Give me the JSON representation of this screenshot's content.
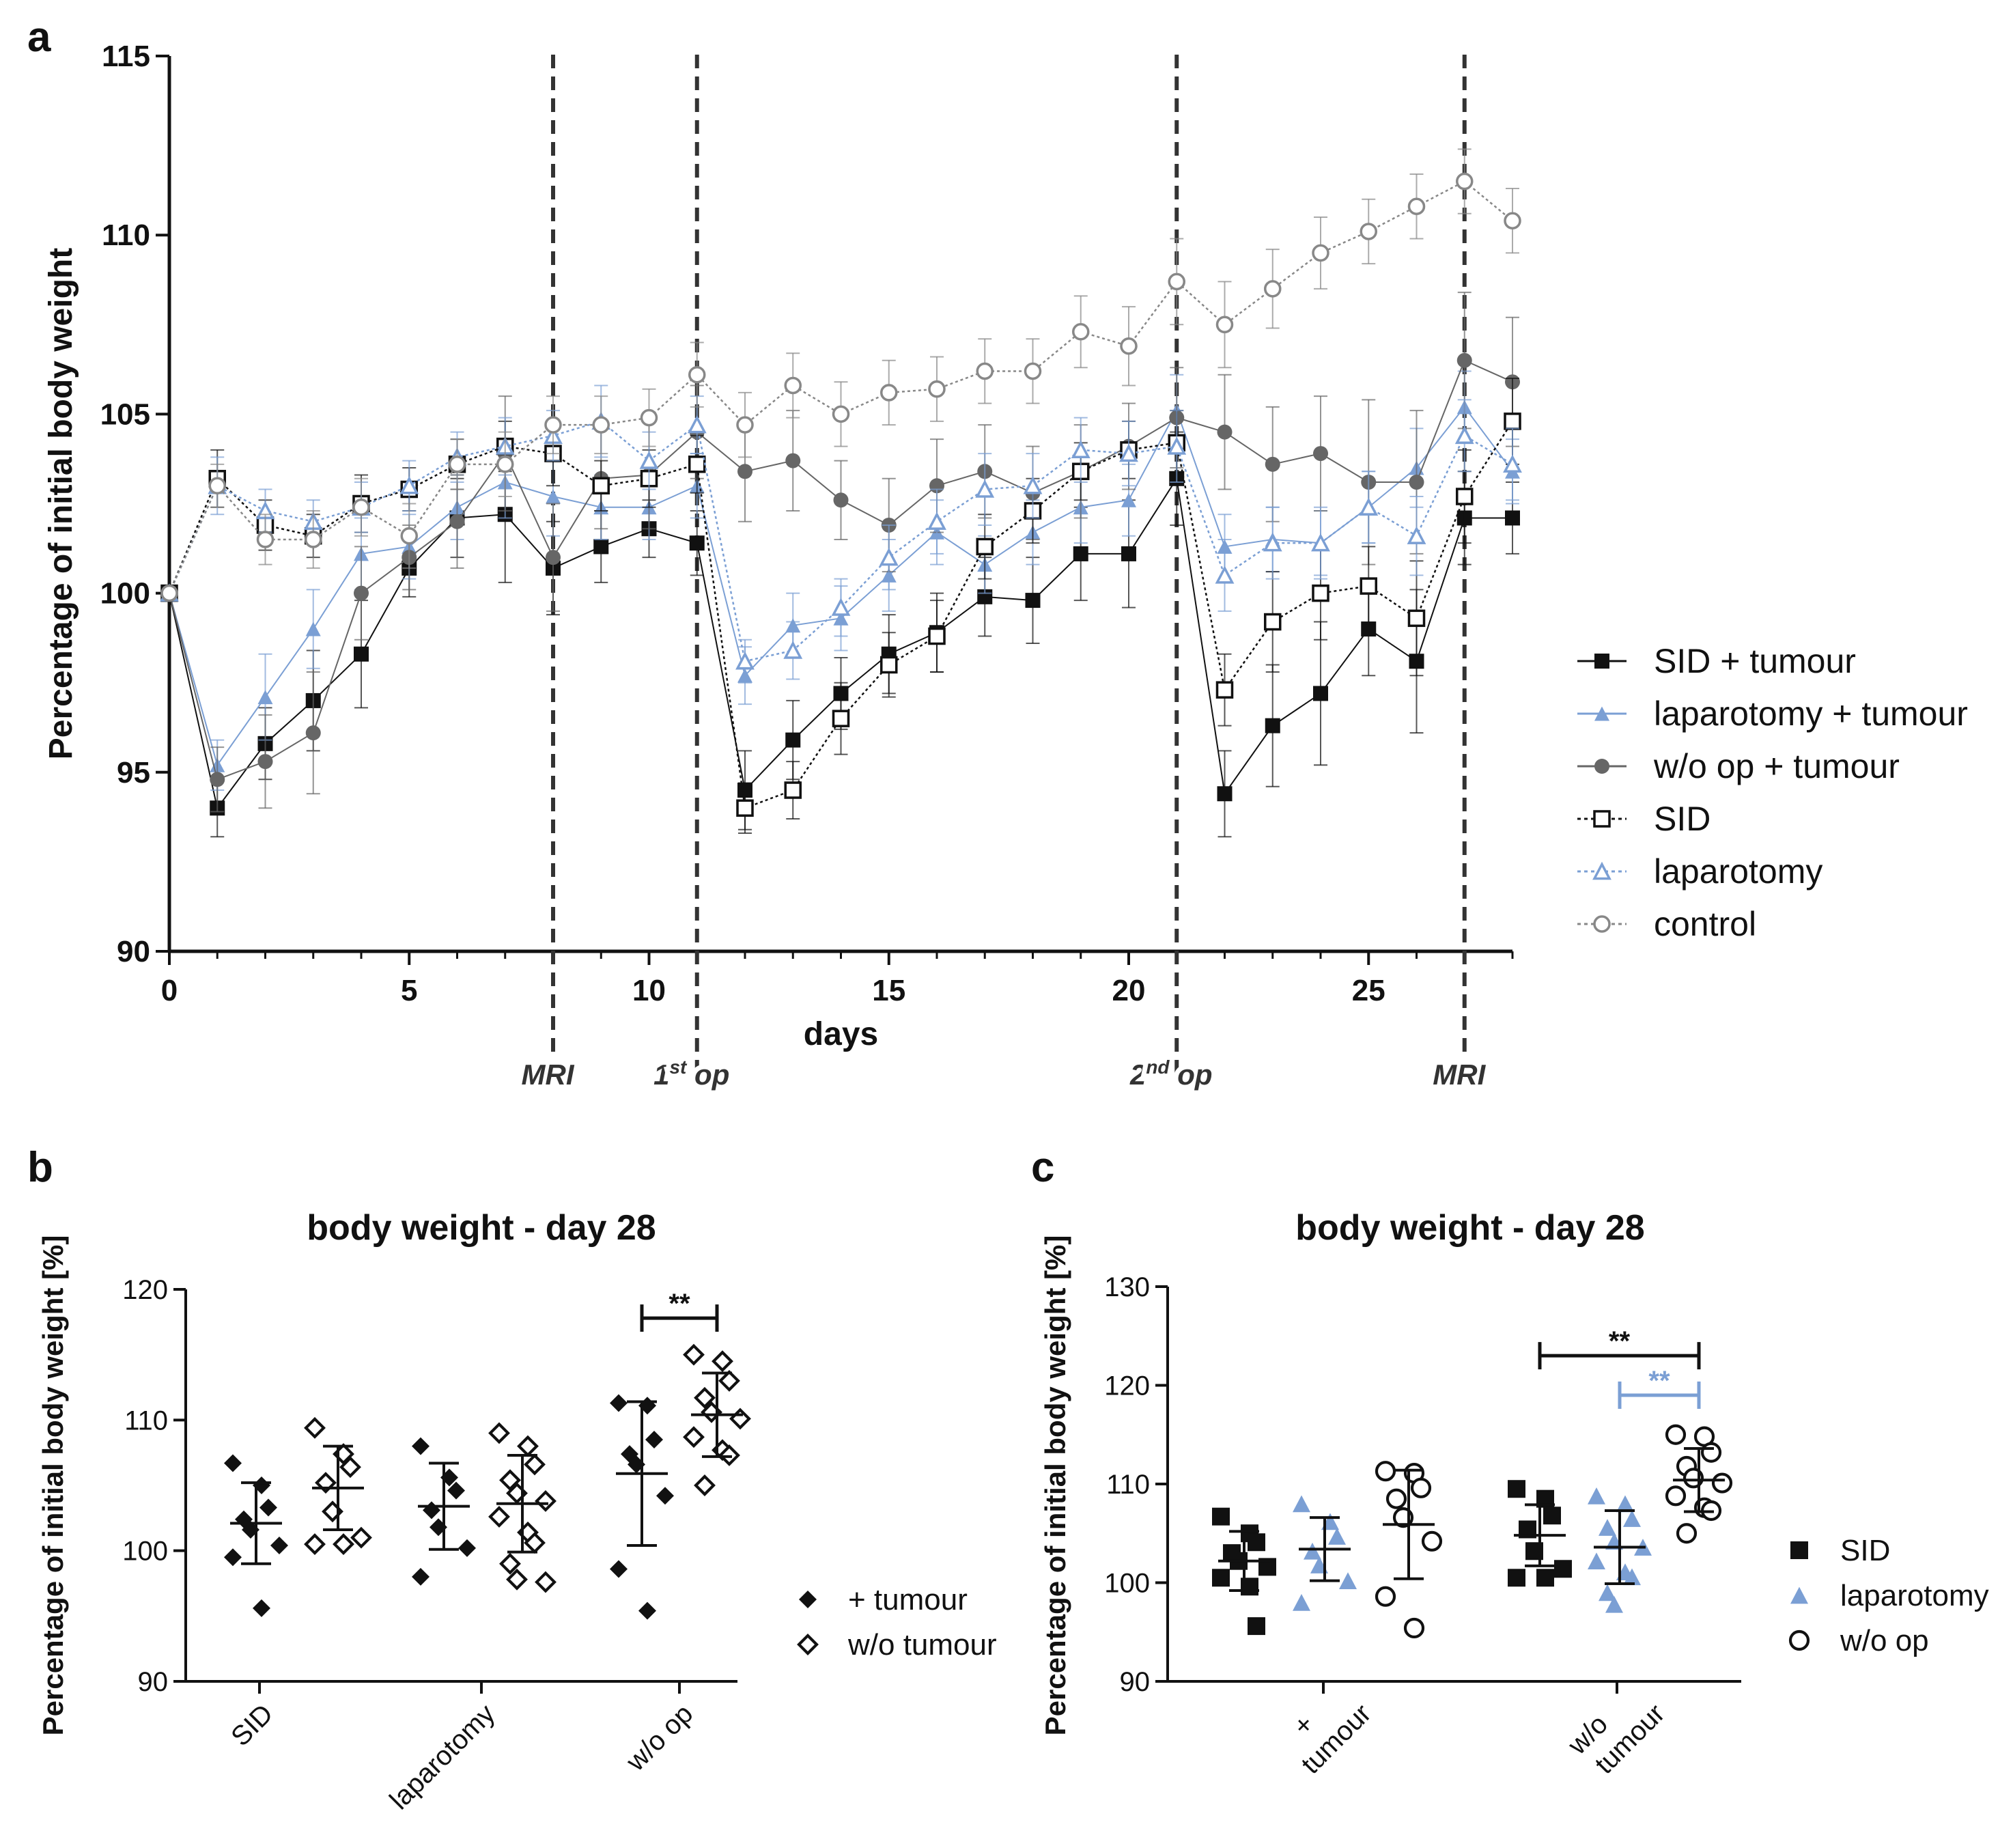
{
  "chart_data": [
    {
      "panel": "a",
      "type": "line",
      "xlabel": "days",
      "ylabel": "Percentage of initial body weight",
      "xlim": [
        0,
        28
      ],
      "ylim": [
        90,
        115
      ],
      "xticks": [
        0,
        5,
        10,
        15,
        20,
        25
      ],
      "yticks": [
        90,
        95,
        100,
        105,
        110,
        115
      ],
      "events": [
        {
          "day": 8,
          "label": "MRI"
        },
        {
          "day": 11,
          "label": "1",
          "sup": "st",
          "suffix": " op"
        },
        {
          "day": 21,
          "label": "2",
          "sup": "nd",
          "suffix": " op"
        },
        {
          "day": 27,
          "label": "MRI"
        }
      ],
      "x": [
        0,
        1,
        2,
        3,
        4,
        5,
        6,
        7,
        8,
        9,
        10,
        11,
        12,
        13,
        14,
        15,
        16,
        17,
        18,
        19,
        20,
        21,
        22,
        23,
        24,
        25,
        26,
        27,
        28
      ],
      "series": [
        {
          "name": "SID + tumour",
          "marker": "square-filled",
          "color": "#111111",
          "line": "solid",
          "values": [
            100,
            94.0,
            95.8,
            97.0,
            98.3,
            100.7,
            102.1,
            102.2,
            100.7,
            101.3,
            101.8,
            101.4,
            94.5,
            95.9,
            97.2,
            98.3,
            98.9,
            99.9,
            99.8,
            101.1,
            101.1,
            103.2,
            94.4,
            96.3,
            97.2,
            99.0,
            98.1,
            102.1,
            102.1
          ],
          "err": [
            0,
            0.8,
            1.0,
            1.4,
            1.5,
            0.8,
            1.1,
            1.9,
            1.3,
            1.0,
            0.8,
            0.9,
            1.1,
            1.1,
            1.0,
            1.1,
            1.1,
            1.1,
            1.2,
            1.3,
            1.5,
            1.3,
            1.2,
            1.7,
            2.0,
            1.3,
            2.0,
            1.3,
            1.0
          ]
        },
        {
          "name": "laparotomy + tumour",
          "marker": "triangle-filled",
          "color": "#7b9fd4",
          "line": "solid",
          "values": [
            100,
            95.2,
            97.1,
            99.0,
            101.1,
            101.3,
            102.4,
            103.1,
            102.7,
            102.4,
            102.4,
            103.0,
            97.7,
            99.1,
            99.3,
            100.5,
            101.7,
            100.8,
            101.7,
            102.4,
            102.6,
            105.1,
            101.3,
            101.5,
            101.4,
            102.4,
            103.5,
            105.2,
            103.4
          ],
          "err": [
            0,
            0.7,
            1.2,
            1.1,
            1.0,
            0.9,
            0.9,
            1.0,
            1.1,
            0.9,
            0.9,
            0.9,
            0.8,
            0.9,
            0.9,
            1.0,
            0.9,
            0.8,
            0.9,
            1.0,
            1.0,
            1.0,
            0.9,
            0.9,
            0.9,
            1.0,
            1.1,
            1.0,
            0.9
          ]
        },
        {
          "name": "w/o op + tumour",
          "marker": "circle-filled",
          "color": "#666666",
          "line": "solid",
          "values": [
            100,
            94.8,
            95.3,
            96.1,
            100.0,
            101.0,
            102.0,
            103.9,
            101.0,
            103.2,
            103.3,
            104.5,
            103.4,
            103.7,
            102.6,
            101.9,
            103.0,
            103.4,
            102.8,
            103.4,
            104.1,
            104.9,
            104.5,
            103.6,
            103.9,
            103.1,
            103.1,
            106.5,
            105.9
          ],
          "err": [
            0,
            0.9,
            1.3,
            1.7,
            1.3,
            0.9,
            1.3,
            1.6,
            1.5,
            1.4,
            1.5,
            1.3,
            1.4,
            1.4,
            1.1,
            1.3,
            1.3,
            1.3,
            1.3,
            1.3,
            1.2,
            1.4,
            1.6,
            1.6,
            1.6,
            2.3,
            2.0,
            1.9,
            1.8
          ]
        },
        {
          "name": "SID",
          "marker": "square-open",
          "color": "#111111",
          "line": "dotted",
          "values": [
            100,
            103.2,
            101.9,
            101.6,
            102.5,
            102.9,
            103.6,
            104.1,
            103.9,
            103.0,
            103.2,
            103.6,
            94.0,
            94.5,
            96.5,
            98.0,
            98.8,
            101.3,
            102.3,
            103.4,
            104.0,
            104.2,
            97.3,
            99.2,
            100.0,
            100.2,
            99.3,
            102.7,
            104.8
          ],
          "err": [
            0,
            0.8,
            0.7,
            0.6,
            0.8,
            0.6,
            0.7,
            0.7,
            0.9,
            0.7,
            0.8,
            0.8,
            0.7,
            0.8,
            1.0,
            0.9,
            1.0,
            0.9,
            0.9,
            0.8,
            0.8,
            0.9,
            1.0,
            1.4,
            1.3,
            1.1,
            1.6,
            1.3,
            1.2
          ]
        },
        {
          "name": "laparotomy",
          "marker": "triangle-open",
          "color": "#7b9fd4",
          "line": "dotted",
          "values": [
            100,
            103.0,
            102.3,
            102.0,
            102.4,
            103.0,
            103.8,
            104.1,
            104.4,
            104.8,
            103.7,
            104.7,
            98.1,
            98.4,
            99.6,
            101.0,
            102.0,
            102.9,
            103.0,
            104.0,
            103.9,
            104.1,
            100.5,
            101.4,
            101.4,
            102.4,
            101.6,
            104.4,
            103.6
          ],
          "err": [
            0,
            0.8,
            0.6,
            0.6,
            0.7,
            0.7,
            0.7,
            0.8,
            0.7,
            1.0,
            0.8,
            0.8,
            0.6,
            0.8,
            0.8,
            0.9,
            0.9,
            1.0,
            0.9,
            0.9,
            0.9,
            1.0,
            1.0,
            1.0,
            1.0,
            1.0,
            1.1,
            1.0,
            1.0
          ]
        },
        {
          "name": "control",
          "marker": "circle-open",
          "color": "#888888",
          "line": "dotted",
          "values": [
            100,
            103.0,
            101.5,
            101.5,
            102.4,
            101.6,
            103.6,
            103.6,
            104.7,
            104.7,
            104.9,
            106.1,
            104.7,
            105.8,
            105.0,
            105.6,
            105.7,
            106.2,
            106.2,
            107.3,
            106.9,
            108.7,
            107.5,
            108.5,
            109.5,
            110.1,
            110.8,
            111.5,
            110.4
          ],
          "err": [
            0,
            0.6,
            0.7,
            0.8,
            0.8,
            0.9,
            0.7,
            0.9,
            0.8,
            0.8,
            0.8,
            0.9,
            0.9,
            0.9,
            0.9,
            0.9,
            0.9,
            0.9,
            0.9,
            1.0,
            1.1,
            1.2,
            1.2,
            1.1,
            1.0,
            0.9,
            0.9,
            0.9,
            0.9
          ]
        }
      ]
    },
    {
      "panel": "b",
      "type": "scatter",
      "title": "body weight - day 28",
      "ylabel": "Percentage of initial body weight [%]",
      "ylim": [
        90,
        120
      ],
      "yticks": [
        90,
        100,
        110,
        120
      ],
      "categories": [
        "SID",
        "laparotomy",
        "w/o op"
      ],
      "legend": [
        {
          "label": "+ tumour",
          "marker": "diamond-filled"
        },
        {
          "label": "w/o tumour",
          "marker": "diamond-open"
        }
      ],
      "groups": [
        {
          "category": "SID",
          "subgroup": "+ tumour",
          "mean": 102.1,
          "sd": 3.1,
          "points": [
            106.7,
            105.0,
            103.3,
            102.4,
            101.6,
            100.4,
            99.5,
            95.6
          ]
        },
        {
          "category": "SID",
          "subgroup": "w/o tumour",
          "mean": 104.8,
          "sd": 3.2,
          "points": [
            109.4,
            107.4,
            106.4,
            105.2,
            103.0,
            101.0,
            100.5,
            100.5
          ]
        },
        {
          "category": "laparotomy",
          "subgroup": "+ tumour",
          "mean": 103.4,
          "sd": 3.3,
          "points": [
            108.0,
            105.6,
            104.6,
            103.1,
            101.8,
            100.2,
            98.0
          ]
        },
        {
          "category": "laparotomy",
          "subgroup": "w/o tumour",
          "mean": 103.6,
          "sd": 3.7,
          "points": [
            109.0,
            108.0,
            106.6,
            105.4,
            104.4,
            103.8,
            102.6,
            101.4,
            100.6,
            99.0,
            97.8,
            97.6
          ]
        },
        {
          "category": "w/o op",
          "subgroup": "+ tumour",
          "mean": 105.9,
          "sd": 5.5,
          "points": [
            111.3,
            111.1,
            108.5,
            107.4,
            106.6,
            104.2,
            98.6,
            95.4
          ]
        },
        {
          "category": "w/o op",
          "subgroup": "w/o tumour",
          "mean": 110.4,
          "sd": 3.2,
          "points": [
            115.0,
            114.5,
            113.0,
            111.7,
            110.6,
            110.1,
            108.7,
            107.7,
            107.3,
            105.0
          ]
        }
      ],
      "significance": [
        {
          "between": [
            "w/o op + tumour",
            "w/o op w/o tumour"
          ],
          "label": "**"
        }
      ]
    },
    {
      "panel": "c",
      "type": "scatter",
      "title": "body weight - day 28",
      "ylabel": "Percentage of initial body weight [%]",
      "ylim": [
        90,
        130
      ],
      "yticks": [
        90,
        100,
        110,
        120,
        130
      ],
      "categories": [
        "+ tumour",
        "w/o tumour"
      ],
      "category_lines": [
        [
          "+",
          "tumour"
        ],
        [
          "w/o",
          "tumour"
        ]
      ],
      "legend": [
        {
          "label": "SID",
          "marker": "square-filled",
          "color": "#111111"
        },
        {
          "label": "laparotomy",
          "marker": "triangle-filled",
          "color": "#7b9fd4"
        },
        {
          "label": "w/o op",
          "marker": "circle-open",
          "color": "#111111"
        }
      ],
      "groups": [
        {
          "category": "+ tumour",
          "subgroup": "SID",
          "mean": 102.2,
          "sd": 3.0,
          "points": [
            106.7,
            105.0,
            104.1,
            103.0,
            102.2,
            101.6,
            100.5,
            99.6,
            95.6
          ]
        },
        {
          "category": "+ tumour",
          "subgroup": "laparotomy",
          "mean": 103.4,
          "sd": 3.2,
          "points": [
            108.0,
            106.2,
            104.7,
            103.2,
            101.8,
            100.2,
            98.0
          ]
        },
        {
          "category": "+ tumour",
          "subgroup": "w/o op",
          "mean": 105.9,
          "sd": 5.5,
          "points": [
            111.3,
            111.1,
            109.6,
            108.5,
            106.6,
            104.2,
            98.6,
            95.4
          ]
        },
        {
          "category": "w/o tumour",
          "subgroup": "SID",
          "mean": 104.8,
          "sd": 3.1,
          "points": [
            109.5,
            108.5,
            106.8,
            105.4,
            103.2,
            101.4,
            100.5,
            100.5
          ]
        },
        {
          "category": "w/o tumour",
          "subgroup": "laparotomy",
          "mean": 103.6,
          "sd": 3.7,
          "points": [
            108.8,
            108.0,
            106.5,
            105.6,
            104.2,
            103.6,
            102.2,
            101.1,
            100.6,
            99.0,
            97.8
          ]
        },
        {
          "category": "w/o tumour",
          "subgroup": "w/o op",
          "mean": 110.4,
          "sd": 3.2,
          "points": [
            115.0,
            114.8,
            113.2,
            111.8,
            110.6,
            110.1,
            108.8,
            107.6,
            107.3,
            105.0
          ]
        }
      ],
      "significance": [
        {
          "between": [
            "w/o tumour SID",
            "w/o tumour w/o op"
          ],
          "label": "**",
          "color": "#111111"
        },
        {
          "between": [
            "w/o tumour laparotomy",
            "w/o tumour w/o op"
          ],
          "label": "**",
          "color": "#7b9fd4"
        }
      ]
    }
  ]
}
